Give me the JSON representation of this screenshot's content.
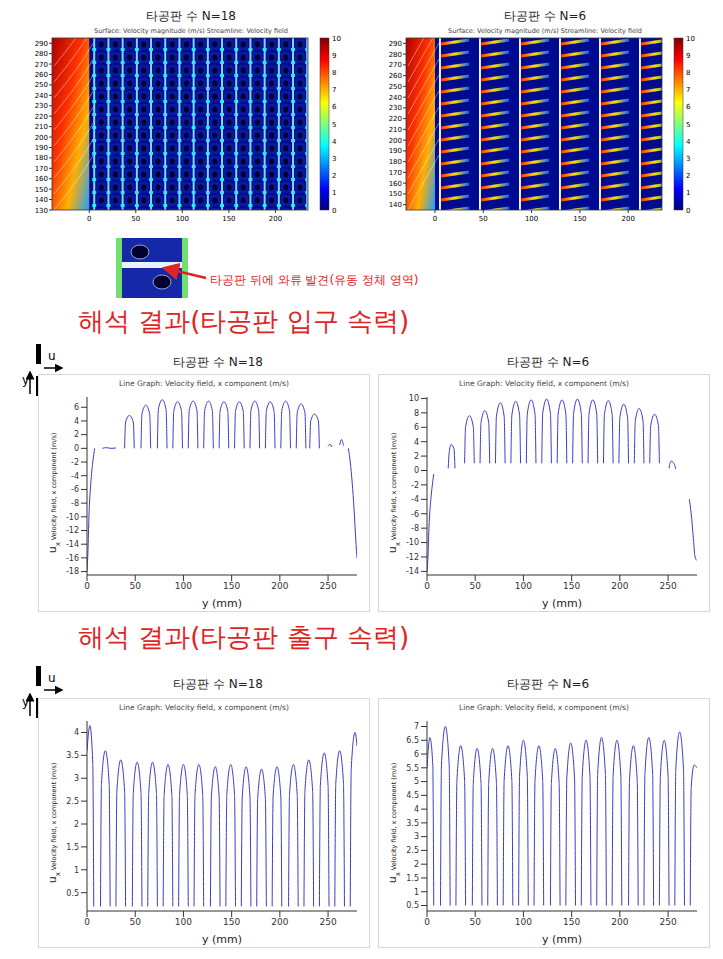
{
  "chart_data": [
    {
      "type": "contour",
      "title": "타공판 수 N=18",
      "subtitle": "Surface: Velocity magnitude (m/s)  Streamline: Velocity field",
      "xlim": [
        -40,
        235
      ],
      "xticks": [
        0,
        50,
        100,
        150,
        200
      ],
      "ylim": [
        130,
        295
      ],
      "yticks": [
        130,
        140,
        150,
        160,
        170,
        180,
        190,
        200,
        210,
        220,
        230,
        240,
        250,
        260,
        270,
        280,
        290
      ],
      "colorbar_range": [
        0,
        10
      ],
      "colorbar_ticks": [
        0,
        1,
        2,
        3,
        4,
        5,
        6,
        7,
        8,
        9,
        10
      ],
      "annotation": "타공판 뒤에 와류 발견(유동 정체 영역)"
    },
    {
      "type": "contour",
      "title": "타공판 수 N=6",
      "subtitle": "Surface: Velocity magnitude (m/s)  Streamline: Velocity field",
      "xlim": [
        -30,
        235
      ],
      "xticks": [
        0,
        50,
        100,
        150,
        200
      ],
      "ylim": [
        135,
        295
      ],
      "yticks": [
        140,
        150,
        160,
        170,
        180,
        190,
        200,
        210,
        220,
        230,
        240,
        250,
        260,
        270,
        280,
        290
      ],
      "colorbar_range": [
        0,
        10
      ],
      "colorbar_ticks": [
        0,
        1,
        2,
        3,
        4,
        5,
        6,
        7,
        8,
        9,
        10
      ]
    },
    {
      "type": "line",
      "title": "타공판 수 N=18",
      "subtitle": "Line Graph: Velocity field, x component (m/s)",
      "x_label": "y (mm)",
      "y_label": "u",
      "y_label_sub": "x",
      "y_label_note": "Velocity field, x component (m/s)",
      "color": "#3c3cc8",
      "grid": false,
      "xlim": [
        0,
        280
      ],
      "xticks": [
        0,
        50,
        100,
        150,
        200,
        250
      ],
      "ylim": [
        -18.5,
        7.5
      ],
      "yticks": [
        -18,
        -16,
        -14,
        -12,
        -10,
        -8,
        -6,
        -4,
        -2,
        0,
        2,
        4,
        6
      ],
      "x": [
        0,
        1,
        2,
        4,
        6,
        8,
        8.5,
        16,
        20,
        25,
        30,
        30.5,
        39,
        40,
        44,
        48,
        49,
        49.5,
        56,
        57,
        61,
        65,
        66,
        66.5,
        73,
        74,
        78,
        82,
        83,
        83.5,
        89,
        90,
        94,
        98,
        99,
        99.5,
        105,
        106,
        110,
        114,
        115,
        115.5,
        121,
        122,
        126,
        130,
        131,
        131.5,
        137,
        138,
        142,
        146,
        147,
        147.5,
        153,
        154,
        158,
        162,
        163,
        163.5,
        169,
        170,
        174,
        178,
        179,
        179.5,
        185,
        186,
        190,
        194,
        195,
        195.5,
        201,
        202,
        206,
        210,
        211,
        211.5,
        217,
        218,
        222,
        226,
        227,
        227.5,
        231,
        232,
        236,
        240,
        241,
        241.5,
        250,
        252,
        254,
        254.5,
        262,
        264,
        266,
        266.5,
        271,
        273,
        275,
        277,
        279,
        280
      ],
      "values": [
        -18,
        -15,
        -10,
        -5,
        -2,
        0,
        null,
        0,
        0.1,
        0,
        0.05,
        null,
        0,
        3.84,
        4.8,
        3.84,
        0,
        null,
        0,
        5.04,
        6.3,
        5.04,
        0,
        null,
        0,
        5.68,
        7.1,
        5.68,
        0,
        null,
        0,
        5.44,
        6.8,
        5.44,
        0,
        null,
        0,
        5.52,
        6.9,
        5.52,
        0,
        null,
        0,
        5.52,
        6.9,
        5.52,
        0,
        null,
        0,
        5.44,
        6.8,
        5.44,
        0,
        null,
        0,
        5.44,
        6.8,
        5.44,
        0,
        null,
        0,
        5.52,
        6.9,
        5.52,
        0,
        null,
        0,
        5.44,
        6.8,
        5.44,
        0,
        null,
        0,
        5.52,
        6.9,
        5.52,
        0,
        null,
        0,
        5.2,
        6.5,
        5.2,
        0,
        null,
        0,
        4.0,
        5.0,
        4.0,
        0,
        null,
        0.3,
        0.6,
        0.2,
        null,
        0.5,
        1.3,
        0.4,
        null,
        0,
        -2,
        -5,
        -9,
        -14,
        -16
      ]
    },
    {
      "type": "line",
      "title": "타공판 수 N=6",
      "subtitle": "Line Graph: Velocity field, x component (m/s)",
      "x_label": "y (mm)",
      "y_label": "u",
      "y_label_sub": "x",
      "y_label_note": "Velocity field, x component (m/s)",
      "color": "#3c3cc8",
      "grid": false,
      "xlim": [
        0,
        280
      ],
      "xticks": [
        0,
        50,
        100,
        150,
        200,
        250
      ],
      "ylim": [
        -14.5,
        10.2
      ],
      "yticks": [
        -14,
        -12,
        -10,
        -8,
        -6,
        -4,
        -2,
        0,
        2,
        4,
        6,
        8,
        10
      ],
      "x": [
        0,
        1,
        2,
        4,
        6,
        7,
        7.5,
        22,
        23,
        25,
        28,
        29,
        29.5,
        39,
        40,
        44,
        48,
        49,
        49.5,
        55,
        56,
        60,
        64,
        65,
        65.5,
        71,
        72,
        76,
        80,
        81,
        81.5,
        87,
        88,
        92,
        96,
        97,
        97.5,
        103,
        104,
        108,
        112,
        113,
        113.5,
        119,
        120,
        124,
        128,
        129,
        129.5,
        135,
        136,
        140,
        144,
        145,
        145.5,
        151,
        152,
        156,
        160,
        161,
        161.5,
        167,
        168,
        172,
        176,
        177,
        177.5,
        183,
        184,
        188,
        192,
        193,
        193.5,
        199,
        200,
        204,
        208,
        209,
        209.5,
        215,
        216,
        220,
        224,
        225,
        225.5,
        231,
        232,
        236,
        240,
        241,
        241.5,
        251,
        253,
        256,
        258,
        258.5,
        272,
        274,
        276,
        278,
        280
      ],
      "values": [
        -14,
        -12,
        -8,
        -4,
        -1.5,
        -0.5,
        null,
        0.3,
        2.5,
        3.6,
        3.0,
        0.3,
        null,
        1,
        6.08,
        7.6,
        6.08,
        1,
        null,
        1,
        6.64,
        8.3,
        6.64,
        1,
        null,
        1,
        7.52,
        9.4,
        7.52,
        1,
        null,
        1,
        7.68,
        9.6,
        7.68,
        1,
        null,
        1,
        7.84,
        9.8,
        7.84,
        1,
        null,
        1,
        7.92,
        9.9,
        7.92,
        1,
        null,
        1,
        7.84,
        9.8,
        7.84,
        1,
        null,
        1,
        7.92,
        9.9,
        7.92,
        1,
        null,
        1,
        7.84,
        9.8,
        7.84,
        1,
        null,
        1,
        7.76,
        9.7,
        7.76,
        1,
        null,
        1,
        7.36,
        9.2,
        7.36,
        1,
        null,
        1,
        6.88,
        8.6,
        6.88,
        1,
        null,
        1,
        6.24,
        7.8,
        6.24,
        1,
        null,
        0.3,
        1.3,
        1.0,
        0.2,
        null,
        -4,
        -6,
        -9,
        -12,
        -12.5
      ]
    },
    {
      "type": "line",
      "title": "타공판 수 N=18",
      "subtitle": "Line Graph: Velocity field, x component (m/s)",
      "x_label": "y (mm)",
      "y_label": "u",
      "y_label_sub": "x",
      "y_label_note": "Velocity field, x component (m/s)",
      "color": "#3c3cc8",
      "grid": false,
      "xlim": [
        0,
        280
      ],
      "xticks": [
        0,
        50,
        100,
        150,
        200,
        250
      ],
      "ylim": [
        0.1,
        4.25
      ],
      "yticks": [
        0.5,
        1,
        1.5,
        2,
        2.5,
        3,
        3.5,
        4
      ],
      "x": [
        0,
        3,
        6,
        7,
        7.5,
        14,
        15,
        19,
        23,
        24,
        24.5,
        30,
        31,
        35,
        39,
        40,
        40.5,
        47,
        48,
        52,
        56,
        57,
        57.5,
        63,
        64,
        68,
        72,
        73,
        73.5,
        79,
        80,
        84,
        88,
        89,
        89.5,
        95,
        96,
        100,
        104,
        105,
        105.5,
        111,
        112,
        116,
        120,
        121,
        121.5,
        128,
        129,
        133,
        137,
        138,
        138.5,
        144,
        145,
        149,
        153,
        154,
        154.5,
        160,
        161,
        165,
        169,
        170,
        170.5,
        176,
        177,
        181,
        185,
        186,
        186.5,
        192,
        193,
        197,
        201,
        202,
        202.5,
        209,
        210,
        214,
        218,
        219,
        219.5,
        225,
        226,
        230,
        234,
        235,
        235.5,
        241,
        242,
        246,
        250,
        251,
        251.5,
        257,
        258,
        262,
        266,
        267,
        267.5,
        273,
        274,
        278,
        280
      ],
      "values": [
        3.6,
        4.15,
        3.3,
        0.2,
        null,
        0.2,
        2.88,
        3.6,
        2.88,
        0.2,
        null,
        0.2,
        2.72,
        3.4,
        2.72,
        0.2,
        null,
        0.2,
        2.68,
        3.35,
        2.68,
        0.2,
        null,
        0.2,
        2.68,
        3.35,
        2.68,
        0.2,
        null,
        0.2,
        2.64,
        3.3,
        2.64,
        0.2,
        null,
        0.2,
        2.64,
        3.3,
        2.64,
        0.2,
        null,
        0.2,
        2.64,
        3.3,
        2.64,
        0.2,
        null,
        0.2,
        2.6,
        3.25,
        2.6,
        0.2,
        null,
        0.2,
        2.64,
        3.3,
        2.64,
        0.2,
        null,
        0.2,
        2.6,
        3.25,
        2.6,
        0.2,
        null,
        0.2,
        2.56,
        3.2,
        2.56,
        0.2,
        null,
        0.2,
        2.6,
        3.25,
        2.6,
        0.2,
        null,
        0.2,
        2.64,
        3.3,
        2.64,
        0.2,
        null,
        0.2,
        2.72,
        3.4,
        2.72,
        0.2,
        null,
        0.2,
        2.84,
        3.55,
        2.84,
        0.2,
        null,
        0.2,
        2.88,
        3.6,
        2.88,
        0.2,
        null,
        0.2,
        3.2,
        4.0,
        3.7
      ]
    },
    {
      "type": "line",
      "title": "타공판 수 N=6",
      "subtitle": "Line Graph: Velocity field, x component (m/s)",
      "x_label": "y (mm)",
      "y_label": "u",
      "y_label_sub": "x",
      "y_label_note": "Velocity field, x component (m/s)",
      "color": "#3c3cc8",
      "grid": false,
      "xlim": [
        0,
        280
      ],
      "xticks": [
        0,
        50,
        100,
        150,
        200,
        250
      ],
      "ylim": [
        0.3,
        7.2
      ],
      "yticks": [
        0.5,
        1,
        1.5,
        2,
        2.5,
        3,
        3.5,
        4,
        4.5,
        5,
        5.5,
        6,
        6.5,
        7
      ],
      "x": [
        0,
        3,
        6,
        7,
        7.5,
        14,
        15,
        19,
        23,
        24,
        24.5,
        30,
        31,
        35,
        39,
        40,
        40.5,
        47,
        48,
        52,
        56,
        57,
        57.5,
        63,
        64,
        68,
        72,
        73,
        73.5,
        79,
        80,
        84,
        88,
        89,
        89.5,
        95,
        96,
        100,
        104,
        105,
        105.5,
        111,
        112,
        116,
        120,
        121,
        121.5,
        128,
        129,
        133,
        137,
        138,
        138.5,
        144,
        145,
        149,
        153,
        154,
        154.5,
        160,
        161,
        165,
        169,
        170,
        170.5,
        176,
        177,
        181,
        185,
        186,
        186.5,
        192,
        193,
        197,
        201,
        202,
        202.5,
        209,
        210,
        214,
        218,
        219,
        219.5,
        225,
        226,
        230,
        234,
        235,
        235.5,
        241,
        242,
        246,
        250,
        251,
        251.5,
        257,
        258,
        262,
        266,
        267,
        267.5,
        273,
        274,
        277,
        280
      ],
      "values": [
        5.5,
        6.6,
        5.6,
        0.5,
        null,
        0.5,
        5.6,
        7.0,
        5.6,
        0.5,
        null,
        0.5,
        5.04,
        6.3,
        5.04,
        0.5,
        null,
        0.5,
        4.96,
        6.2,
        4.96,
        0.5,
        null,
        0.5,
        4.96,
        6.2,
        4.96,
        0.5,
        null,
        0.5,
        5.04,
        6.3,
        5.04,
        0.5,
        null,
        0.5,
        5.2,
        6.5,
        5.2,
        0.5,
        null,
        0.5,
        5.04,
        6.3,
        5.04,
        0.5,
        null,
        0.5,
        4.96,
        6.2,
        4.96,
        0.5,
        null,
        0.5,
        5.12,
        6.4,
        5.12,
        0.5,
        null,
        0.5,
        5.2,
        6.5,
        5.2,
        0.5,
        null,
        0.5,
        5.28,
        6.6,
        5.28,
        0.5,
        null,
        0.5,
        5.2,
        6.5,
        5.2,
        0.5,
        null,
        0.5,
        5.04,
        6.3,
        5.04,
        0.5,
        null,
        0.5,
        5.28,
        6.6,
        5.28,
        0.5,
        null,
        0.5,
        5.2,
        6.5,
        5.2,
        0.5,
        null,
        0.5,
        5.44,
        6.8,
        5.44,
        0.5,
        null,
        0.5,
        4.8,
        5.6,
        5.5
      ]
    }
  ],
  "headings": [
    "해석 결과(타공판 입구 속력)",
    "해석 결과(타공판 출구 속력)"
  ],
  "axis_symbols": {
    "x": "u",
    "y": "y"
  }
}
